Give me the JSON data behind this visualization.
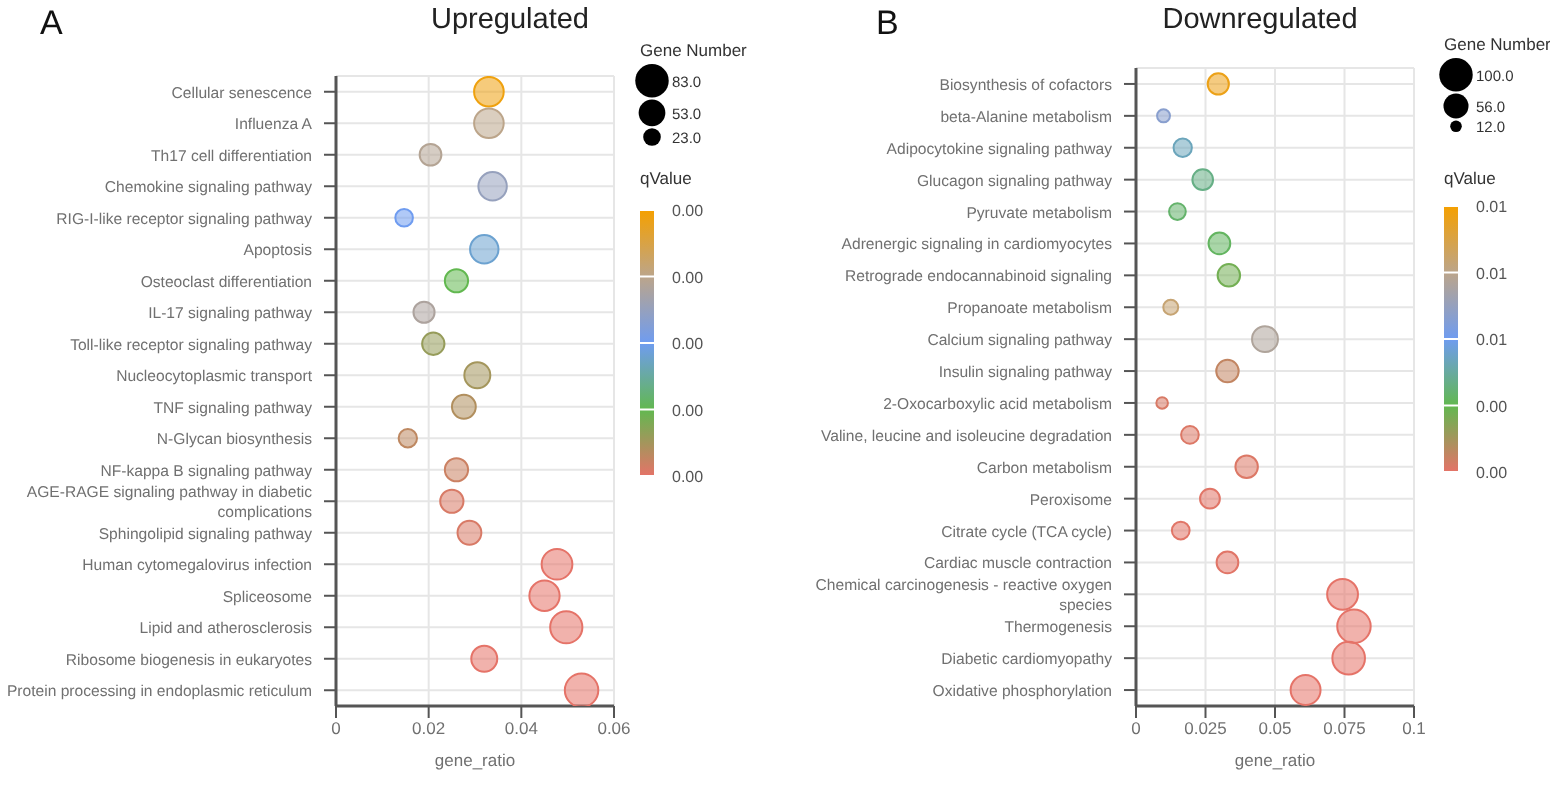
{
  "chart_data": [
    {
      "type": "bubble",
      "title": "Upregulated",
      "annotations": [
        "A"
      ],
      "xlabel": "gene_ratio",
      "orientation": "horizontal",
      "categories": [
        "Cellular senescence",
        "Influenza A",
        "Th17 cell differentiation",
        "Chemokine signaling pathway",
        "RIG-I-like receptor signaling pathway",
        "Apoptosis",
        "Osteoclast differentiation",
        "IL-17 signaling pathway",
        "Toll-like receptor signaling pathway",
        "Nucleocytoplasmic transport",
        "TNF signaling pathway",
        "N-Glycan biosynthesis",
        "NF-kappa B signaling pathway",
        "AGE-RAGE signaling pathway in diabetic complications",
        "Sphingolipid signaling pathway",
        "Human cytomegalovirus infection",
        "Spliceosome",
        "Lipid and atherosclerosis",
        "Ribosome biogenesis in eukaryotes",
        "Protein processing in endoplasmic reticulum"
      ],
      "values": [
        0.033,
        0.033,
        0.0204,
        0.0338,
        0.0147,
        0.032,
        0.026,
        0.019,
        0.021,
        0.0305,
        0.0276,
        0.0155,
        0.026,
        0.025,
        0.0288,
        0.0477,
        0.045,
        0.0497,
        0.032,
        0.053
      ],
      "sizes": [
        65,
        65,
        35,
        60,
        23,
        60,
        40,
        33,
        37,
        50,
        42,
        25,
        40,
        40,
        42,
        70,
        68,
        77,
        50,
        83
      ],
      "cvalues": [
        0.0039,
        0.003,
        0.0029,
        0.0025,
        0.002,
        0.0018,
        0.001,
        0.0028,
        0.0006,
        0.0005,
        0.0004,
        0.0003,
        0.0002,
        0.0001,
        0.0001,
        0,
        0,
        0,
        0,
        0
      ],
      "xlim": [
        0,
        0.06
      ],
      "xticks": [
        0,
        0.02,
        0.04,
        0.06
      ],
      "grid": true,
      "legend_title": "Gene Number",
      "size_legend": [
        {
          "value": 83,
          "label": "83.0"
        },
        {
          "value": 53,
          "label": "53.0"
        },
        {
          "value": 23,
          "label": "23.0"
        }
      ],
      "clabel": "qValue",
      "clim": [
        0,
        0.004
      ],
      "cticks": [
        {
          "value": 0,
          "label": "0.00"
        },
        {
          "value": 0.001,
          "label": "0.00"
        },
        {
          "value": 0.002,
          "label": "0.00"
        },
        {
          "value": 0.003,
          "label": "0.00"
        },
        {
          "value": 0.004,
          "label": "0.00"
        }
      ]
    },
    {
      "type": "bubble",
      "title": "Downregulated",
      "annotations": [
        "B"
      ],
      "xlabel": "gene_ratio",
      "orientation": "horizontal",
      "categories": [
        "Biosynthesis of cofactors",
        "beta-Alanine metabolism",
        "Adipocytokine signaling pathway",
        "Glucagon signaling pathway",
        "Pyruvate metabolism",
        "Adrenergic signaling in cardiomyocytes",
        "Retrograde endocannabinoid signaling",
        "Propanoate metabolism",
        "Calcium signaling pathway",
        "Insulin signaling pathway",
        "2-Oxocarboxylic acid metabolism",
        "Valine, leucine and isoleucine degradation",
        "Carbon metabolism",
        "Peroxisome",
        "Citrate cycle (TCA cycle)",
        "Cardiac muscle contraction",
        "Chemical carcinogenesis - reactive oxygen species",
        "Thermogenesis",
        "Diabetic cardiomyopathy",
        "Oxidative phosphorylation"
      ],
      "values": [
        0.0296,
        0.0099,
        0.0168,
        0.024,
        0.0149,
        0.03,
        0.0334,
        0.0125,
        0.0464,
        0.0329,
        0.0094,
        0.0194,
        0.0398,
        0.0266,
        0.0161,
        0.0329,
        0.0743,
        0.0784,
        0.0765,
        0.061
      ],
      "sizes": [
        40,
        15,
        30,
        38,
        25,
        42,
        45,
        20,
        60,
        45,
        12,
        28,
        45,
        35,
        28,
        42,
        85,
        100,
        95,
        80
      ],
      "cvalues": [
        0.0115,
        0.007,
        0.005,
        0.004,
        0.0035,
        0.0033,
        0.0026,
        0.0095,
        0.0085,
        0.0008,
        0.0003,
        0.0002,
        0.0002,
        0.0001,
        0.0001,
        0.0001,
        0,
        0,
        0,
        0
      ],
      "xlim": [
        0,
        0.1
      ],
      "xticks": [
        0,
        0.025,
        0.05,
        0.075,
        0.1
      ],
      "grid": true,
      "legend_title": "Gene Number",
      "size_legend": [
        {
          "value": 100,
          "label": "100.0"
        },
        {
          "value": 56,
          "label": "56.0"
        },
        {
          "value": 12,
          "label": "12.0"
        }
      ],
      "clabel": "qValue",
      "clim": [
        0,
        0.012
      ],
      "cticks": [
        {
          "value": 0,
          "label": "0.00"
        },
        {
          "value": 0.003,
          "label": "0.00"
        },
        {
          "value": 0.006,
          "label": "0.01"
        },
        {
          "value": 0.009,
          "label": "0.01"
        },
        {
          "value": 0.012,
          "label": "0.01"
        }
      ]
    }
  ]
}
